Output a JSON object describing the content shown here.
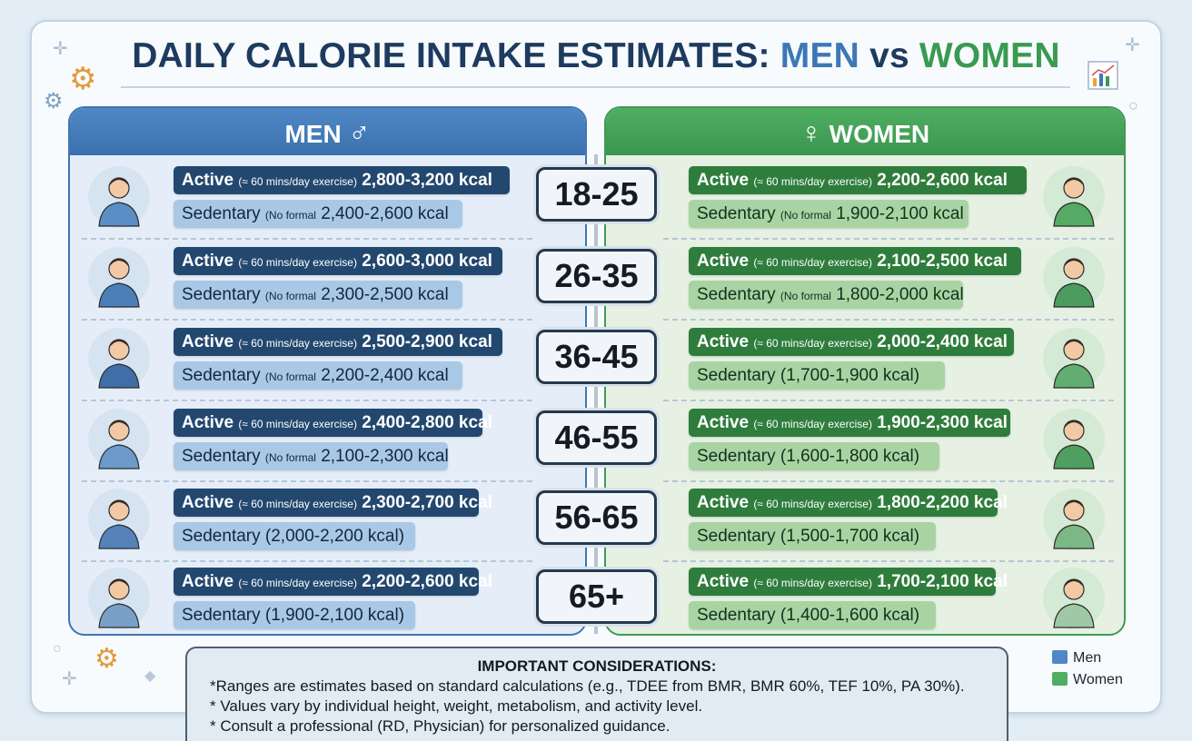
{
  "title": {
    "part1": "DAILY CALORIE INTAKE ESTIMATES: ",
    "men": "MEN",
    "vs": " vs ",
    "women": "WOMEN"
  },
  "headers": {
    "men": "MEN",
    "men_symbol": "♂",
    "women": "WOMEN",
    "women_symbol": "♀"
  },
  "labels": {
    "active": "Active",
    "active_note": "(≈ 60 mins/day exercise)",
    "sedentary": "Sedentary",
    "sedentary_note": "(No formal"
  },
  "rows": [
    {
      "age": "18-25",
      "men_active": "2,800-3,200 kcal",
      "men_sed": "2,400-2,600 kcal",
      "men_sed_full": "",
      "women_active": "2,200-2,600 kcal",
      "women_sed": "1,900-2,100 kcal",
      "women_sed_full": ""
    },
    {
      "age": "26-35",
      "men_active": "2,600-3,000 kcal",
      "men_sed": "2,300-2,500 kcal",
      "men_sed_full": "",
      "women_active": "2,100-2,500 kcal",
      "women_sed": "1,800-2,000 kcal",
      "women_sed_full": ""
    },
    {
      "age": "36-45",
      "men_active": "2,500-2,900 kcal",
      "men_sed": "2,200-2,400 kcal",
      "men_sed_full": "",
      "women_active": "2,000-2,400 kcal",
      "women_sed": "",
      "women_sed_full": "(1,700-1,900 kcal)"
    },
    {
      "age": "46-55",
      "men_active": "2,400-2,800 kcal",
      "men_sed": "2,100-2,300 kcal",
      "men_sed_full": "",
      "women_active": "1,900-2,300 kcal",
      "women_sed": "",
      "women_sed_full": "(1,600-1,800 kcal)"
    },
    {
      "age": "56-65",
      "men_active": "2,300-2,700 kcal",
      "men_sed": "",
      "men_sed_full": "(2,000-2,200 kcal)",
      "women_active": "1,800-2,200 kcal",
      "women_sed": "",
      "women_sed_full": "(1,500-1,700 kcal)"
    },
    {
      "age": "65+",
      "men_active": "2,200-2,600 kcal",
      "men_sed": "",
      "men_sed_full": "(1,900-2,100 kcal)",
      "women_active": "1,700-2,100 kcal",
      "women_sed": "",
      "women_sed_full": "(1,400-1,600 kcal)"
    }
  ],
  "considerations": {
    "title": "IMPORTANT CONSIDERATIONS:",
    "line1": "*Ranges are estimates based on standard calculations (e.g., TDEE from BMR, BMR 60%, TEF 10%, PA 30%).",
    "line2": "* Values vary by individual height, weight, metabolism, and activity level.",
    "line3": "* Consult a professional (RD, Physician) for personalized guidance."
  },
  "legend": {
    "men": "Men",
    "women": "Women",
    "men_color": "#4f88c5",
    "women_color": "#4fae62"
  },
  "colors": {
    "title_dark": "#1e3b5f",
    "men_accent": "#3d78b5",
    "women_accent": "#3a9a52"
  },
  "icons": [
    "plus-sparkle-icon",
    "gear-icon",
    "bar-chart-icon",
    "circle-icon",
    "diamond-icon",
    "person-avatar-icon"
  ]
}
